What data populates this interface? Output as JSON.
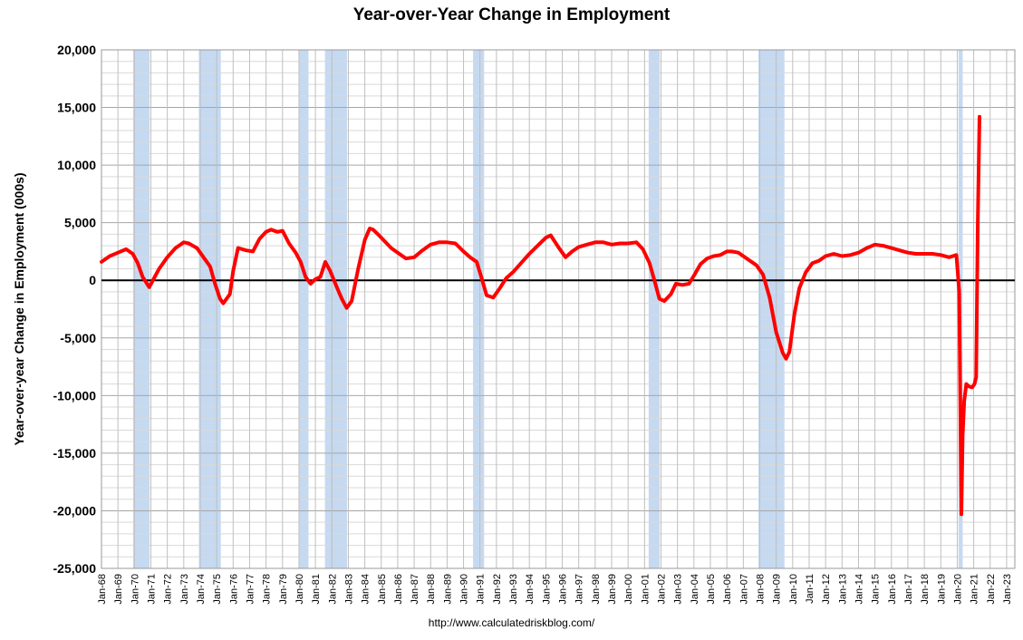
{
  "chart_data": {
    "type": "line",
    "title": "Year-over-Year Change in Employment",
    "ylabel": "Year-over-year Change in Employment (000s)",
    "xlabel": "",
    "source": "http://www.calculatedriskblog.com/",
    "ylim": [
      -25000,
      20000
    ],
    "yticks": [
      20000,
      15000,
      10000,
      5000,
      0,
      -5000,
      -10000,
      -15000,
      -20000,
      -25000
    ],
    "ytick_labels": [
      "20,000",
      "15,000",
      "10,000",
      "5,000",
      "0",
      "-5,000",
      "-10,000",
      "-15,000",
      "-20,000",
      "-25,000"
    ],
    "xlim": [
      1968,
      2023.5
    ],
    "xtick_labels": [
      "Jan-68",
      "Jan-69",
      "Jan-70",
      "Jan-71",
      "Jan-72",
      "Jan-73",
      "Jan-74",
      "Jan-75",
      "Jan-76",
      "Jan-77",
      "Jan-78",
      "Jan-79",
      "Jan-80",
      "Jan-81",
      "Jan-82",
      "Jan-83",
      "Jan-84",
      "Jan-85",
      "Jan-86",
      "Jan-87",
      "Jan-88",
      "Jan-89",
      "Jan-90",
      "Jan-91",
      "Jan-92",
      "Jan-93",
      "Jan-94",
      "Jan-95",
      "Jan-96",
      "Jan-97",
      "Jan-98",
      "Jan-99",
      "Jan-00",
      "Jan-01",
      "Jan-02",
      "Jan-03",
      "Jan-04",
      "Jan-05",
      "Jan-06",
      "Jan-07",
      "Jan-08",
      "Jan-09",
      "Jan-10",
      "Jan-11",
      "Jan-12",
      "Jan-13",
      "Jan-14",
      "Jan-15",
      "Jan-16",
      "Jan-17",
      "Jan-18",
      "Jan-19",
      "Jan-20",
      "Jan-21",
      "Jan-22",
      "Jan-23"
    ],
    "grid": true,
    "legend": "none",
    "colors": {
      "line": "#ff0000",
      "recession": "#c5d9f1",
      "grid": "#bfbfbf",
      "zero_line": "#000000"
    },
    "recessions": [
      {
        "start": 1969.92,
        "end": 1970.92
      },
      {
        "start": 1973.92,
        "end": 1975.25
      },
      {
        "start": 1980.0,
        "end": 1980.58
      },
      {
        "start": 1981.58,
        "end": 1982.92
      },
      {
        "start": 1990.58,
        "end": 1991.25
      },
      {
        "start": 2001.25,
        "end": 2001.92
      },
      {
        "start": 2007.92,
        "end": 2009.5
      },
      {
        "start": 2020.08,
        "end": 2020.33
      }
    ],
    "series": [
      {
        "x": [
          1968.0,
          1968.5,
          1969.0,
          1969.5,
          1969.9,
          1970.2,
          1970.5,
          1970.9,
          1971.2,
          1971.5,
          1972.0,
          1972.5,
          1973.0,
          1973.3,
          1973.8,
          1974.2,
          1974.6,
          1974.9,
          1975.2,
          1975.4,
          1975.8,
          1976.0,
          1976.3,
          1976.8,
          1977.2,
          1977.6,
          1978.0,
          1978.3,
          1978.7,
          1979.0,
          1979.4,
          1979.8,
          1980.1,
          1980.4,
          1980.7,
          1981.0,
          1981.3,
          1981.6,
          1981.9,
          1982.3,
          1982.6,
          1982.9,
          1983.2,
          1983.6,
          1984.0,
          1984.3,
          1984.5,
          1984.8,
          1985.2,
          1985.6,
          1986.0,
          1986.5,
          1987.0,
          1987.5,
          1988.0,
          1988.5,
          1989.0,
          1989.5,
          1990.0,
          1990.4,
          1990.8,
          1991.1,
          1991.4,
          1991.8,
          1992.2,
          1992.6,
          1993.0,
          1993.5,
          1994.0,
          1994.5,
          1995.0,
          1995.3,
          1995.8,
          1996.2,
          1996.6,
          1997.0,
          1997.5,
          1998.0,
          1998.5,
          1999.0,
          1999.5,
          2000.0,
          2000.5,
          2000.9,
          2001.3,
          2001.6,
          2001.9,
          2002.2,
          2002.6,
          2002.9,
          2003.3,
          2003.7,
          2004.0,
          2004.4,
          2004.8,
          2005.2,
          2005.6,
          2006.0,
          2006.3,
          2006.7,
          2007.0,
          2007.4,
          2007.8,
          2008.2,
          2008.6,
          2009.0,
          2009.4,
          2009.6,
          2009.8,
          2010.1,
          2010.4,
          2010.8,
          2011.2,
          2011.6,
          2012.0,
          2012.5,
          2013.0,
          2013.5,
          2014.0,
          2014.5,
          2015.0,
          2015.5,
          2016.0,
          2016.5,
          2017.0,
          2017.5,
          2018.0,
          2018.5,
          2019.0,
          2019.5,
          2019.95,
          2020.12,
          2020.25,
          2020.33,
          2020.42,
          2020.55,
          2020.7,
          2020.9,
          2021.05,
          2021.15,
          2021.25,
          2021.35
        ],
        "y": [
          1600,
          2100,
          2400,
          2700,
          2300,
          1500,
          300,
          -600,
          200,
          1000,
          2000,
          2800,
          3300,
          3200,
          2800,
          2000,
          1200,
          -300,
          -1600,
          -2000,
          -1200,
          800,
          2800,
          2600,
          2500,
          3600,
          4200,
          4400,
          4200,
          4300,
          3200,
          2400,
          1600,
          300,
          -300,
          100,
          300,
          1600,
          800,
          -600,
          -1600,
          -2400,
          -1800,
          1000,
          3500,
          4500,
          4400,
          4000,
          3400,
          2800,
          2400,
          1900,
          2000,
          2600,
          3100,
          3300,
          3300,
          3200,
          2500,
          2000,
          1600,
          200,
          -1300,
          -1500,
          -700,
          200,
          700,
          1500,
          2300,
          3000,
          3700,
          3900,
          2800,
          2000,
          2500,
          2900,
          3100,
          3300,
          3300,
          3100,
          3200,
          3200,
          3300,
          2700,
          1500,
          0,
          -1600,
          -1800,
          -1200,
          -300,
          -400,
          -300,
          400,
          1400,
          1900,
          2100,
          2200,
          2500,
          2500,
          2400,
          2100,
          1700,
          1300,
          500,
          -1500,
          -4500,
          -6300,
          -6800,
          -6200,
          -3000,
          -700,
          700,
          1500,
          1700,
          2100,
          2300,
          2100,
          2200,
          2400,
          2800,
          3100,
          3000,
          2800,
          2600,
          2400,
          2300,
          2300,
          2300,
          2200,
          2000,
          2200,
          -1000,
          -20300,
          -13500,
          -10500,
          -9000,
          -9200,
          -9300,
          -9000,
          -8400,
          5000,
          14200
        ]
      }
    ]
  }
}
